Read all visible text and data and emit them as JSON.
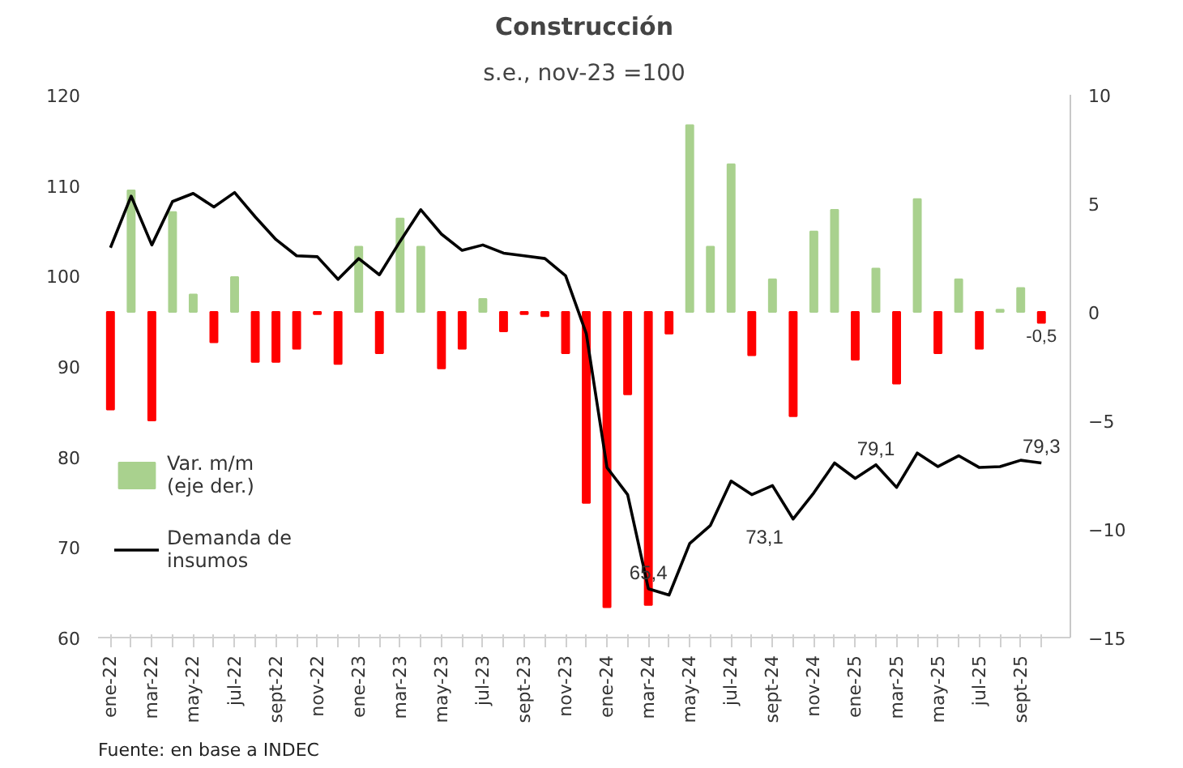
{
  "chart_data": {
    "type": "bar",
    "title": "Construcción",
    "subtitle": "s.e., nov-23 =100",
    "categories": [
      "ene-22",
      null,
      "mar-22",
      null,
      "may-22",
      null,
      "jul-22",
      null,
      "sept-22",
      null,
      "nov-22",
      null,
      "ene-23",
      null,
      "mar-23",
      null,
      "may-23",
      null,
      "jul-23",
      null,
      "sept-23",
      null,
      "nov-23",
      null,
      "ene-24",
      null,
      "mar-24",
      null,
      "may-24",
      null,
      "jul-24",
      null,
      "sept-24",
      null,
      "nov-24",
      null,
      "ene-25",
      null,
      "mar-25",
      null,
      "may-25",
      null,
      "jul-25",
      null,
      "sept-25",
      null
    ],
    "series": [
      {
        "name": "Var. m/m (eje der.)",
        "axis": "y2",
        "color": "#a9d18e",
        "colors": [
          "#ff0000",
          "#a9d18e",
          "#ff0000",
          "#a9d18e",
          "#a9d18e",
          "#ff0000",
          "#a9d18e",
          "#ff0000",
          "#ff0000",
          "#ff0000",
          "#ff0000",
          "#ff0000",
          "#a9d18e",
          "#ff0000",
          "#a9d18e",
          "#a9d18e",
          "#ff0000",
          "#ff0000",
          "#a9d18e",
          "#ff0000",
          "#ff0000",
          "#ff0000",
          "#ff0000",
          "#ff0000",
          "#ff0000",
          "#ff0000",
          "#ff0000",
          "#ff0000",
          "#a9d18e",
          "#a9d18e",
          "#a9d18e",
          "#ff0000",
          "#a9d18e",
          "#ff0000",
          "#a9d18e",
          "#a9d18e",
          "#ff0000",
          "#a9d18e",
          "#ff0000",
          "#a9d18e",
          "#ff0000",
          "#a9d18e",
          "#ff0000",
          "#a9d18e",
          "#a9d18e",
          "#ff0000"
        ],
        "values": [
          -4.5,
          5.6,
          -5.0,
          4.6,
          0.8,
          -1.4,
          1.6,
          -2.3,
          -2.3,
          -1.7,
          -0.1,
          -2.4,
          3.0,
          -1.9,
          4.3,
          3.0,
          -2.6,
          -1.7,
          0.6,
          -0.9,
          -0.1,
          -0.2,
          -1.9,
          -8.8,
          -13.6,
          -3.8,
          -13.5,
          -1.0,
          8.6,
          3.0,
          6.8,
          -2.0,
          1.5,
          -4.8,
          3.7,
          4.7,
          -2.2,
          2.0,
          -3.3,
          5.2,
          -1.9,
          1.5,
          -1.7,
          0.1,
          1.1,
          -0.5
        ],
        "value_labels": [
          null,
          null,
          null,
          null,
          null,
          null,
          null,
          null,
          null,
          null,
          null,
          null,
          null,
          null,
          null,
          null,
          null,
          null,
          null,
          null,
          null,
          null,
          null,
          null,
          null,
          null,
          null,
          null,
          null,
          null,
          null,
          null,
          null,
          null,
          null,
          null,
          null,
          null,
          null,
          null,
          null,
          null,
          null,
          null,
          null,
          "-0,5"
        ]
      },
      {
        "name": "Demanda de insumos",
        "type": "line",
        "color": "#000000",
        "values": [
          103.1,
          108.8,
          103.4,
          108.2,
          109.1,
          107.6,
          109.2,
          106.5,
          104.0,
          102.2,
          102.1,
          99.6,
          101.9,
          100.1,
          103.8,
          107.3,
          104.6,
          102.8,
          103.4,
          102.5,
          102.2,
          101.9,
          100.0,
          93.6,
          78.8,
          75.8,
          65.4,
          64.7,
          70.4,
          72.4,
          77.3,
          75.8,
          76.8,
          73.1,
          76.0,
          79.3,
          77.6,
          79.1,
          76.6,
          80.4,
          78.9,
          80.1,
          78.8,
          78.9,
          79.6,
          79.3
        ],
        "value_labels": [
          null,
          null,
          null,
          null,
          null,
          null,
          null,
          null,
          null,
          null,
          null,
          null,
          null,
          null,
          null,
          null,
          null,
          null,
          null,
          null,
          null,
          null,
          null,
          null,
          null,
          null,
          "65,4",
          null,
          null,
          null,
          null,
          null,
          null,
          "73,1",
          null,
          null,
          null,
          "79,1",
          null,
          null,
          null,
          null,
          null,
          null,
          null,
          "79,3"
        ]
      }
    ],
    "ylim": [
      60,
      120
    ],
    "yticks": [
      60,
      70,
      80,
      90,
      100,
      110,
      120
    ],
    "y2lim": [
      -15,
      10
    ],
    "y2ticks": [
      -15,
      -10,
      -5,
      0,
      5,
      10
    ],
    "grid": false,
    "legend": "left",
    "annotations": [
      "Fuente: en base a INDEC"
    ]
  }
}
